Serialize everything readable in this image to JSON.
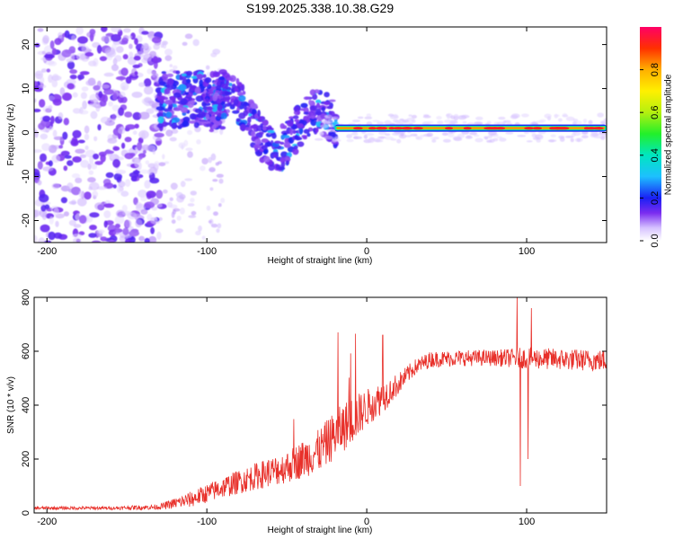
{
  "title": "S199.2025.338.10.38.G29",
  "chart_data": [
    {
      "type": "heatmap",
      "name": "spectrogram",
      "xlabel": "Height of straight line (km)",
      "ylabel": "Frequency (Hz)",
      "xlim": [
        -208,
        150
      ],
      "ylim": [
        -25,
        24
      ],
      "xticks": [
        -200,
        -100,
        0,
        100
      ],
      "yticks": [
        -20,
        -10,
        0,
        10,
        20
      ],
      "colorbar": {
        "label": "Normalized spectral amplitude",
        "range": [
          0,
          1
        ],
        "ticks": [
          0.0,
          0.2,
          0.4,
          0.6,
          0.8
        ]
      },
      "ridge": {
        "description": "dominant frequency near +1 Hz from about -20 km to 150 km",
        "x_start": -20,
        "x_end": 150,
        "frequency": 1
      }
    },
    {
      "type": "line",
      "name": "snr",
      "xlabel": "Height of straight line (km)",
      "ylabel": "SNR (10 * v/v)",
      "xlim": [
        -208,
        150
      ],
      "ylim": [
        0,
        800
      ],
      "xticks": [
        -200,
        -100,
        0,
        100
      ],
      "yticks": [
        0,
        200,
        400,
        600,
        800
      ],
      "color": "#e8302a",
      "series": [
        {
          "name": "SNR",
          "trend_x": [
            -208,
            -160,
            -130,
            -110,
            -90,
            -70,
            -50,
            -30,
            -20,
            -10,
            0,
            10,
            20,
            30,
            40,
            60,
            80,
            100,
            120,
            150
          ],
          "trend_y": [
            18,
            18,
            22,
            50,
            95,
            135,
            170,
            230,
            290,
            340,
            390,
            430,
            480,
            540,
            570,
            575,
            575,
            575,
            570,
            565
          ],
          "noise_amp": [
            6,
            6,
            10,
            30,
            40,
            50,
            60,
            80,
            90,
            90,
            70,
            60,
            40,
            30,
            30,
            30,
            30,
            40,
            40,
            40
          ],
          "spikes": [
            {
              "x": -18,
              "y": 670
            },
            {
              "x": -7,
              "y": 665
            },
            {
              "x": 10,
              "y": 660
            },
            {
              "x": 94,
              "y": 800
            },
            {
              "x": 96,
              "y": 100
            },
            {
              "x": 101,
              "y": 200
            },
            {
              "x": 103,
              "y": 760
            }
          ]
        }
      ]
    }
  ]
}
